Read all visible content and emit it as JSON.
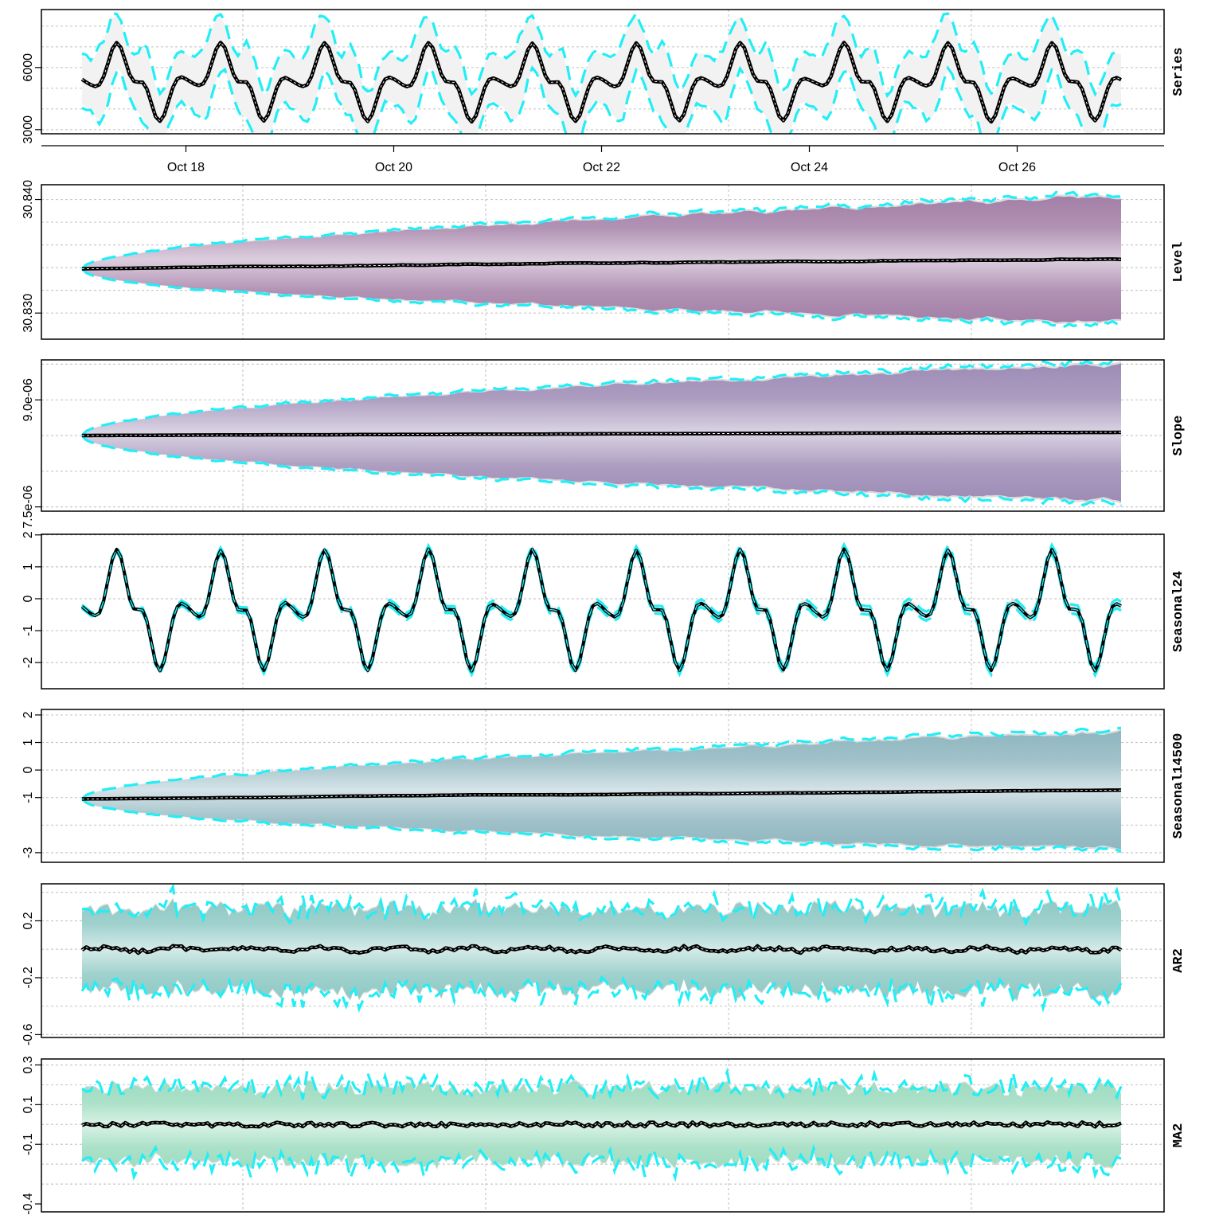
{
  "chart_data": {
    "type": "line",
    "figure": "State-space model decomposition with posterior fan bands",
    "x_axis": {
      "start_day": 17.0,
      "end_day": 27.0,
      "tick_days": [
        18,
        20,
        22,
        24,
        26
      ],
      "tick_labels": [
        "Oct 18",
        "Oct 20",
        "Oct 22",
        "Oct 24",
        "Oct 26"
      ]
    },
    "colors": {
      "mean_line": "#000000",
      "bound_dash": "#22eef6",
      "Series": "#f2f2f2",
      "Level": "#a37fa7",
      "Slope": "#9d8bb5",
      "Seasonal24": "#cfcfcf",
      "Seasonal14500": "#8fb6bf",
      "AR2": "#8ec9c4",
      "MA2": "#9ddcc0"
    },
    "panels": [
      {
        "label": "Series",
        "type": "line",
        "ylim": [
          2800,
          8800
        ],
        "yticks": [
          3000,
          6000
        ],
        "ytick_labels": [
          "3000",
          "6000"
        ],
        "grid_y": [
          3000,
          4000,
          5000,
          6000,
          7000,
          8000
        ],
        "mean": {
          "base": 5300,
          "daily_amp": 2000,
          "trend": 0
        },
        "band": {
          "start": 500,
          "end": 1800
        }
      },
      {
        "label": "Level",
        "type": "line",
        "ylim": [
          30.8277,
          30.8413
        ],
        "yticks": [
          30.83,
          30.84
        ],
        "ytick_labels": [
          "30.830",
          "30.840"
        ],
        "grid_y": [
          30.83,
          30.832,
          30.834,
          30.836,
          30.838,
          30.84
        ],
        "mean": {
          "start": 30.8339,
          "end": 30.8348
        },
        "band": {
          "start": 0.0,
          "end": 0.0055
        }
      },
      {
        "label": "Slope",
        "type": "line",
        "ylim": [
          7.44e-06,
          9.56e-06
        ],
        "yticks": [
          7.5e-06,
          9e-06
        ],
        "ytick_labels": [
          "7.5e-06",
          "9.0e-06"
        ],
        "grid_y": [
          7.5e-06,
          8e-06,
          8.5e-06,
          9e-06,
          9.5e-06
        ],
        "mean": {
          "start": 8.5e-06,
          "end": 8.55e-06
        },
        "band": {
          "start": 0.0,
          "end": 9.5e-07
        }
      },
      {
        "label": "Seasonal24",
        "type": "line",
        "ylim": [
          -2.82,
          2.02
        ],
        "yticks": [
          -2,
          -1,
          0,
          1,
          2
        ],
        "ytick_labels": [
          "-2",
          "-1",
          "0",
          "1",
          "2"
        ],
        "grid_y": [
          -2,
          -1,
          0,
          1,
          2
        ],
        "mean": {
          "base": -0.35,
          "daily_amp": 2.0,
          "trend": 0
        },
        "band": {
          "start": 0.05,
          "end": 0.14
        }
      },
      {
        "label": "Seasonal14500",
        "type": "line",
        "ylim": [
          -3.35,
          2.2
        ],
        "yticks": [
          -3,
          -1,
          0,
          1,
          2
        ],
        "ytick_labels": [
          "-3",
          "-1",
          "0",
          "1",
          "2"
        ],
        "grid_y": [
          -3,
          -2,
          -1,
          0,
          1,
          2
        ],
        "mean": {
          "start": -1.05,
          "end": -0.75
        },
        "band": {
          "start": 0.0,
          "end": 2.1
        }
      },
      {
        "label": "AR2",
        "type": "line",
        "ylim": [
          -0.62,
          0.46
        ],
        "yticks": [
          -0.6,
          -0.2,
          0.2
        ],
        "ytick_labels": [
          "-0.6",
          "-0.2",
          "0.2"
        ],
        "grid_y": [
          -0.6,
          -0.4,
          -0.2,
          0.0,
          0.2,
          0.4
        ],
        "mean": {
          "start": 0.0,
          "end": 0.0
        },
        "band": {
          "start": 0.28,
          "end": 0.28
        }
      },
      {
        "label": "MA2",
        "type": "line",
        "ylim": [
          -0.44,
          0.33
        ],
        "yticks": [
          -0.4,
          -0.1,
          0.1,
          0.3
        ],
        "ytick_labels": [
          "-0.4",
          "-0.1",
          "0.1",
          "0.3"
        ],
        "grid_y": [
          -0.3,
          -0.2,
          -0.1,
          0.0,
          0.1,
          0.2,
          0.3
        ],
        "mean": {
          "start": 0.0,
          "end": 0.0
        },
        "band": {
          "start": 0.18,
          "end": 0.18
        }
      }
    ]
  }
}
